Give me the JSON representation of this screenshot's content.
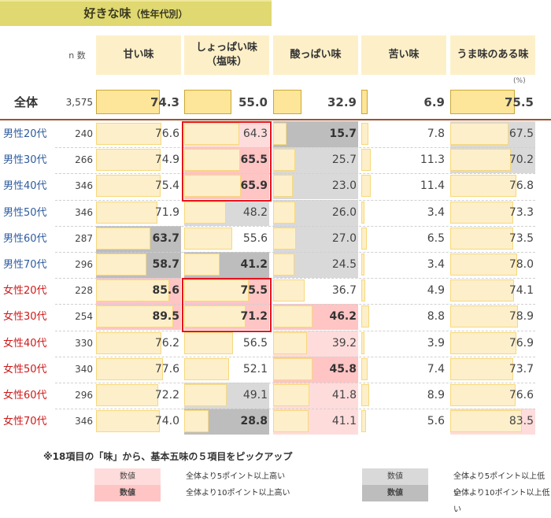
{
  "title": {
    "main": "好きな味",
    "sub": "（性年代別）"
  },
  "header": {
    "n_label": "n 数",
    "percent_unit": "(%)",
    "columns": [
      "甘い味",
      "しょっぱい味\n（塩味）",
      "酸っぱい味",
      "苦い味",
      "うま味のある味"
    ]
  },
  "total_row": {
    "label": "全体",
    "n": "3,575",
    "values": [
      "74.3",
      "55.0",
      "32.9",
      "6.9",
      "75.5"
    ]
  },
  "colors": {
    "title_bg": "#e0d870",
    "header_bg": "#fdf0c9",
    "bar_fill": "#fdefc9",
    "bar_border": "#f7d87a",
    "male_label": "#2e5c9e",
    "female_label": "#cc1a1a",
    "hi5": "#ffdcdc",
    "hi10": "#ffc4c4",
    "lo5": "#d9d9d9",
    "lo10": "#bdbdbd",
    "highlight_border": "#e8141e"
  },
  "rows": [
    {
      "label": "男性20代",
      "gender": "male",
      "n": "240",
      "values": [
        "76.6",
        "64.3",
        "15.7",
        "7.8",
        "67.5"
      ],
      "flags": [
        "",
        "hi5",
        "lo10",
        "",
        "lo5"
      ]
    },
    {
      "label": "男性30代",
      "gender": "male",
      "n": "266",
      "values": [
        "74.9",
        "65.5",
        "25.7",
        "11.3",
        "70.2"
      ],
      "flags": [
        "",
        "hi10",
        "lo5",
        "",
        "lo5"
      ]
    },
    {
      "label": "男性40代",
      "gender": "male",
      "n": "346",
      "values": [
        "75.4",
        "65.9",
        "23.0",
        "11.4",
        "76.8"
      ],
      "flags": [
        "",
        "hi10",
        "lo5",
        "",
        ""
      ]
    },
    {
      "label": "男性50代",
      "gender": "male",
      "n": "346",
      "values": [
        "71.9",
        "48.2",
        "26.0",
        "3.4",
        "73.3"
      ],
      "flags": [
        "",
        "lo5",
        "lo5",
        "",
        ""
      ]
    },
    {
      "label": "男性60代",
      "gender": "male",
      "n": "287",
      "values": [
        "63.7",
        "55.6",
        "27.0",
        "6.5",
        "73.5"
      ],
      "flags": [
        "lo10",
        "",
        "lo5",
        "",
        ""
      ]
    },
    {
      "label": "男性70代",
      "gender": "male",
      "n": "296",
      "values": [
        "58.7",
        "41.2",
        "24.5",
        "3.4",
        "78.0"
      ],
      "flags": [
        "lo10",
        "lo10",
        "lo5",
        "",
        ""
      ]
    },
    {
      "label": "女性20代",
      "gender": "female",
      "n": "228",
      "values": [
        "85.6",
        "75.5",
        "36.7",
        "4.9",
        "74.1"
      ],
      "flags": [
        "hi10",
        "hi10",
        "",
        "",
        ""
      ]
    },
    {
      "label": "女性30代",
      "gender": "female",
      "n": "254",
      "values": [
        "89.5",
        "71.2",
        "46.2",
        "8.8",
        "78.9"
      ],
      "flags": [
        "hi10",
        "hi10",
        "hi10",
        "",
        ""
      ]
    },
    {
      "label": "女性40代",
      "gender": "female",
      "n": "330",
      "values": [
        "76.2",
        "56.5",
        "39.2",
        "3.9",
        "76.9"
      ],
      "flags": [
        "",
        "",
        "hi5",
        "",
        ""
      ]
    },
    {
      "label": "女性50代",
      "gender": "female",
      "n": "340",
      "values": [
        "77.6",
        "52.1",
        "45.8",
        "7.4",
        "73.7"
      ],
      "flags": [
        "",
        "",
        "hi10",
        "",
        ""
      ]
    },
    {
      "label": "女性60代",
      "gender": "female",
      "n": "296",
      "values": [
        "72.2",
        "49.1",
        "41.8",
        "8.9",
        "76.6"
      ],
      "flags": [
        "",
        "lo5",
        "hi5",
        "",
        ""
      ]
    },
    {
      "label": "女性70代",
      "gender": "female",
      "n": "346",
      "values": [
        "74.0",
        "28.8",
        "41.1",
        "5.6",
        "83.5"
      ],
      "flags": [
        "",
        "lo10",
        "hi5",
        "",
        "hi5"
      ]
    }
  ],
  "note": "※18項目の「味」から、基本五味の５項目をピックアップ",
  "legend": [
    {
      "swatch": "数値",
      "text": "全体より5ポイント以上高い",
      "type": "hi5"
    },
    {
      "swatch": "数値",
      "text": "全体より10ポイント以上高い",
      "type": "hi10"
    },
    {
      "swatch": "数値",
      "text": "全体より5ポイント以上低い",
      "type": "lo5"
    },
    {
      "swatch": "数値",
      "text": "全体より10ポイント以上低い",
      "type": "lo10"
    }
  ],
  "chart_data": {
    "type": "table",
    "title": "好きな味（性年代別）",
    "unit": "%",
    "categories": [
      "甘い味",
      "しょっぱい味（塩味）",
      "酸っぱい味",
      "苦い味",
      "うま味のある味"
    ],
    "series": [
      {
        "name": "全体",
        "n": 3575,
        "values": [
          74.3,
          55.0,
          32.9,
          6.9,
          75.5
        ]
      },
      {
        "name": "男性20代",
        "n": 240,
        "values": [
          76.6,
          64.3,
          15.7,
          7.8,
          67.5
        ]
      },
      {
        "name": "男性30代",
        "n": 266,
        "values": [
          74.9,
          65.5,
          25.7,
          11.3,
          70.2
        ]
      },
      {
        "name": "男性40代",
        "n": 346,
        "values": [
          75.4,
          65.9,
          23.0,
          11.4,
          76.8
        ]
      },
      {
        "name": "男性50代",
        "n": 346,
        "values": [
          71.9,
          48.2,
          26.0,
          3.4,
          73.3
        ]
      },
      {
        "name": "男性60代",
        "n": 287,
        "values": [
          63.7,
          55.6,
          27.0,
          6.5,
          73.5
        ]
      },
      {
        "name": "男性70代",
        "n": 296,
        "values": [
          58.7,
          41.2,
          24.5,
          3.4,
          78.0
        ]
      },
      {
        "name": "女性20代",
        "n": 228,
        "values": [
          85.6,
          75.5,
          36.7,
          4.9,
          74.1
        ]
      },
      {
        "name": "女性30代",
        "n": 254,
        "values": [
          89.5,
          71.2,
          46.2,
          8.8,
          78.9
        ]
      },
      {
        "name": "女性40代",
        "n": 330,
        "values": [
          76.2,
          56.5,
          39.2,
          3.9,
          76.9
        ]
      },
      {
        "name": "女性50代",
        "n": 340,
        "values": [
          77.6,
          52.1,
          45.8,
          7.4,
          73.7
        ]
      },
      {
        "name": "女性60代",
        "n": 296,
        "values": [
          72.2,
          49.1,
          41.8,
          8.9,
          76.6
        ]
      },
      {
        "name": "女性70代",
        "n": 346,
        "values": [
          74.0,
          28.8,
          41.1,
          5.6,
          83.5
        ]
      }
    ],
    "annotations": [
      "Red boxes highlight しょっぱい味 for 男性20代–40代 and 女性20代–30代",
      "Pink = 5+ / 10+ points above total; Grey = 5+ / 10+ points below total"
    ],
    "ylim": [
      0,
      100
    ]
  }
}
